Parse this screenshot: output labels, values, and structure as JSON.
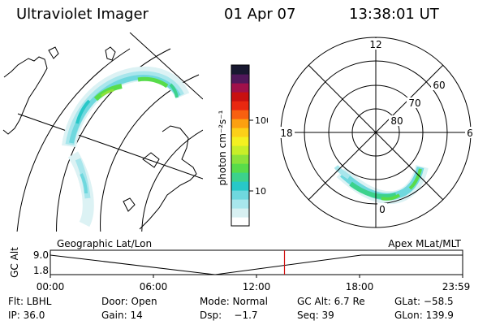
{
  "header": {
    "title": "Ultraviolet Imager",
    "date": "01 Apr 07",
    "time": "13:38:01 UT"
  },
  "colors": {
    "palette": [
      "#ffffff",
      "#d8f0f2",
      "#a8e6ec",
      "#6fd8de",
      "#28c8c8",
      "#3cd28c",
      "#58dc4a",
      "#8ce23a",
      "#c8ee28",
      "#f4f020",
      "#fcd018",
      "#fca010",
      "#f86010",
      "#e82810",
      "#c81010",
      "#a0104a",
      "#50185a",
      "#181830"
    ]
  },
  "colorbar": {
    "label": "photon cm⁻²s⁻¹",
    "ticks": [
      "100",
      "10"
    ]
  },
  "polar": {
    "mlt_labels": {
      "top": "12",
      "left": "18",
      "right": "6",
      "bottom": "0"
    },
    "lat_labels": [
      "60",
      "70",
      "80"
    ]
  },
  "timeline": {
    "ylabel": "GC Alt",
    "y_ticks": [
      "9.0",
      "1.8"
    ],
    "left_caption": "Geographic Lat/Lon",
    "right_caption": "Apex  MLat/MLT",
    "x_ticks": [
      "00:00",
      "06:00",
      "12:00",
      "18:00",
      "23:59"
    ],
    "current_marker_hours": 13.63
  },
  "info": {
    "row1": {
      "flt": "Flt: LBHL",
      "door": "Door: Open",
      "mode": "Mode: Normal",
      "gcalt": "GC Alt: 6.7 Re",
      "glat": "GLat: −58.5"
    },
    "row2": {
      "ip": "IP: 36.0",
      "gain": "Gain: 14",
      "dsp": "Dsp:    −1.7",
      "seq": "Seq: 39",
      "glon": "GLon: 139.9"
    }
  }
}
